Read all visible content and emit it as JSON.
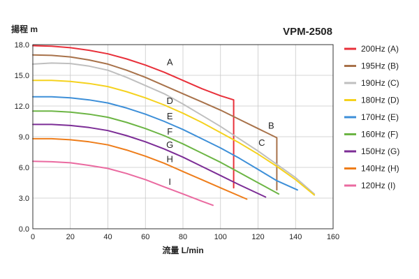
{
  "chart_data": {
    "type": "line",
    "title": "VPM-2508",
    "xlabel": "流量 L/min",
    "ylabel": "揚程 m",
    "xlim": [
      0,
      160
    ],
    "ylim": [
      0,
      18
    ],
    "xticks": [
      "0",
      "20",
      "40",
      "60",
      "80",
      "100",
      "120",
      "140",
      "160"
    ],
    "yticks": [
      "0.0",
      "3.0",
      "6.0",
      "9.0",
      "12.0",
      "15.0",
      "18.0"
    ],
    "grid": true,
    "legend_position": "right",
    "series": [
      {
        "name": "200Hz (A)",
        "label": "A",
        "color": "#e8303a",
        "x": [
          0,
          10,
          20,
          30,
          40,
          50,
          60,
          70,
          80,
          90,
          100,
          107
        ],
        "y": [
          17.9,
          17.85,
          17.7,
          17.45,
          17.1,
          16.6,
          16.0,
          15.3,
          14.5,
          13.7,
          13.0,
          12.6
        ],
        "drop": [
          107,
          4.0
        ],
        "label_at": [
          73,
          16.0
        ]
      },
      {
        "name": "195Hz (B)",
        "label": "B",
        "color": "#a8724a",
        "x": [
          0,
          10,
          20,
          30,
          40,
          50,
          60,
          70,
          80,
          90,
          100,
          110,
          120,
          130
        ],
        "y": [
          17.0,
          16.95,
          16.8,
          16.5,
          16.1,
          15.5,
          14.8,
          14.0,
          13.2,
          12.4,
          11.6,
          10.7,
          9.8,
          8.9
        ],
        "drop": [
          130,
          3.8
        ],
        "label_at": [
          127,
          9.8
        ]
      },
      {
        "name": "190Hz (C)",
        "label": "C",
        "color": "#bfbfbf",
        "x": [
          0,
          10,
          20,
          30,
          40,
          50,
          60,
          70,
          80,
          90,
          100,
          110,
          120,
          130,
          140,
          150
        ],
        "y": [
          16.1,
          16.2,
          16.15,
          15.9,
          15.5,
          14.8,
          14.0,
          13.2,
          12.2,
          11.1,
          10.0,
          8.8,
          7.6,
          6.3,
          5.0,
          3.4
        ],
        "label_at": [
          122,
          8.1
        ]
      },
      {
        "name": "180Hz (D)",
        "label": "D",
        "color": "#f5d21e",
        "x": [
          0,
          10,
          20,
          30,
          40,
          50,
          60,
          70,
          80,
          90,
          100,
          110,
          120,
          130,
          140,
          150
        ],
        "y": [
          14.5,
          14.5,
          14.4,
          14.2,
          13.9,
          13.4,
          12.8,
          12.1,
          11.3,
          10.4,
          9.4,
          8.4,
          7.3,
          6.1,
          4.8,
          3.3
        ],
        "label_at": [
          73,
          12.2
        ]
      },
      {
        "name": "170Hz (E)",
        "label": "E",
        "color": "#3d8fd8",
        "x": [
          0,
          10,
          20,
          30,
          40,
          50,
          60,
          70,
          80,
          90,
          100,
          110,
          120,
          130,
          141
        ],
        "y": [
          12.9,
          12.9,
          12.8,
          12.6,
          12.3,
          11.8,
          11.2,
          10.5,
          9.7,
          8.8,
          7.9,
          6.9,
          5.8,
          4.7,
          3.8
        ],
        "label_at": [
          73,
          10.7
        ]
      },
      {
        "name": "160Hz (F)",
        "label": "F",
        "color": "#6cb544",
        "x": [
          0,
          10,
          20,
          30,
          40,
          50,
          60,
          70,
          80,
          90,
          100,
          110,
          120,
          131
        ],
        "y": [
          11.5,
          11.5,
          11.4,
          11.2,
          10.9,
          10.4,
          9.8,
          9.1,
          8.3,
          7.4,
          6.5,
          5.5,
          4.5,
          3.4
        ],
        "label_at": [
          73,
          9.2
        ]
      },
      {
        "name": "150Hz (G)",
        "label": "G",
        "color": "#7c2d96",
        "x": [
          0,
          10,
          20,
          30,
          40,
          50,
          60,
          70,
          80,
          90,
          100,
          110,
          124
        ],
        "y": [
          10.2,
          10.2,
          10.1,
          9.9,
          9.6,
          9.1,
          8.5,
          7.8,
          7.0,
          6.1,
          5.2,
          4.3,
          3.1
        ],
        "label_at": [
          73,
          7.9
        ]
      },
      {
        "name": "140Hz (H)",
        "label": "H",
        "color": "#ee7d1a",
        "x": [
          0,
          10,
          20,
          30,
          40,
          50,
          60,
          70,
          80,
          90,
          100,
          114
        ],
        "y": [
          8.8,
          8.8,
          8.7,
          8.5,
          8.2,
          7.7,
          7.1,
          6.4,
          5.6,
          4.8,
          4.0,
          2.9
        ],
        "label_at": [
          73,
          6.5
        ]
      },
      {
        "name": "120Hz (I)",
        "label": "I",
        "color": "#ea6aa0",
        "x": [
          0,
          10,
          20,
          30,
          40,
          50,
          60,
          70,
          80,
          90,
          96
        ],
        "y": [
          6.6,
          6.55,
          6.45,
          6.2,
          5.9,
          5.4,
          4.8,
          4.1,
          3.4,
          2.7,
          2.3
        ],
        "label_at": [
          73,
          4.3
        ]
      }
    ]
  }
}
